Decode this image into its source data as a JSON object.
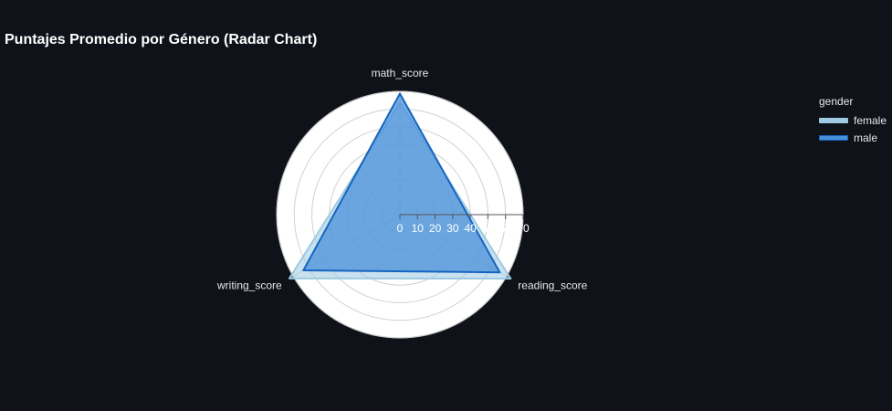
{
  "chart_data": {
    "type": "radar",
    "title": "Puntajes Promedio por Género (Radar Chart)",
    "axes": [
      "math_score",
      "reading_score",
      "writing_score"
    ],
    "radial_range": [
      0,
      70
    ],
    "radial_ticks": [
      "0",
      "10",
      "20",
      "30",
      "40",
      "50",
      "60",
      "70"
    ],
    "grid": true,
    "legend_title": "gender",
    "legend_position": "top-right",
    "series": [
      {
        "name": "female",
        "values": [
          63.6,
          72.6,
          72.5
        ],
        "line_color": "#9ecae1",
        "fill_color": "#9ecae1"
      },
      {
        "name": "male",
        "values": [
          68.7,
          65.5,
          63.3
        ],
        "line_color": "#1565c0",
        "fill_color": "#4a90d9"
      }
    ]
  }
}
